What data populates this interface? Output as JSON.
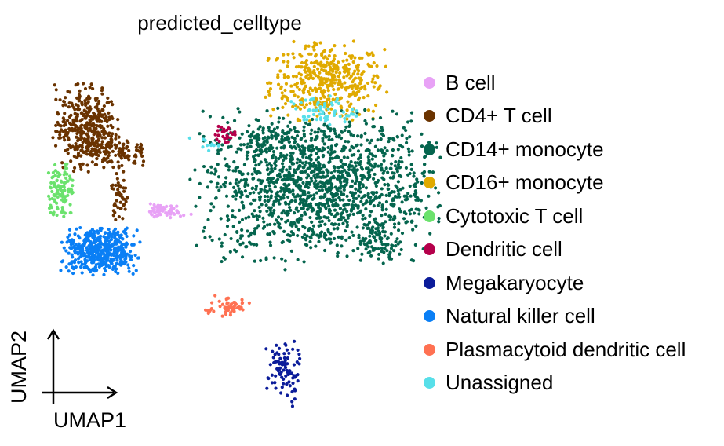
{
  "chart_data": {
    "type": "scatter",
    "title": "predicted_celltype",
    "xlabel": "UMAP1",
    "ylabel": "UMAP2",
    "xlim": [
      0,
      10
    ],
    "ylim": [
      0,
      10
    ],
    "grid": false,
    "legend_placement": "right",
    "categories": [
      {
        "name": "B cell",
        "color": "#E8A2F6"
      },
      {
        "name": "CD4+ T cell",
        "color": "#6A3300"
      },
      {
        "name": "CD14+ monocyte",
        "color": "#05654E"
      },
      {
        "name": "CD16+ monocyte",
        "color": "#E0AA00"
      },
      {
        "name": "Cytotoxic T cell",
        "color": "#6BE26D"
      },
      {
        "name": "Dendritic cell",
        "color": "#B5004B"
      },
      {
        "name": "Megakaryocyte",
        "color": "#0B1C9A"
      },
      {
        "name": "Natural killer cell",
        "color": "#0A7FF5"
      },
      {
        "name": "Plasmacytoid dendritic cell",
        "color": "#FF7152"
      },
      {
        "name": "Unassigned",
        "color": "#58DFE9"
      }
    ],
    "clusters": [
      {
        "category": 3,
        "cx": 7.85,
        "cy": 8.85,
        "sx": 0.75,
        "sy": 0.5,
        "n": 420
      },
      {
        "category": 2,
        "cx": 7.6,
        "cy": 6.05,
        "sx": 1.5,
        "sy": 0.95,
        "n": 1500
      },
      {
        "category": 2,
        "cx": 6.1,
        "cy": 7.3,
        "sx": 0.35,
        "sy": 0.2,
        "n": 60
      },
      {
        "category": 2,
        "cx": 9.25,
        "cy": 4.5,
        "sx": 0.25,
        "sy": 0.3,
        "n": 70
      },
      {
        "category": 9,
        "cx": 7.7,
        "cy": 8.05,
        "sx": 0.45,
        "sy": 0.2,
        "n": 60
      },
      {
        "category": 9,
        "cx": 4.6,
        "cy": 7.15,
        "sx": 0.2,
        "sy": 0.08,
        "n": 10
      },
      {
        "category": 5,
        "cx": 5.2,
        "cy": 7.4,
        "sx": 0.15,
        "sy": 0.12,
        "n": 25
      },
      {
        "category": 1,
        "cx": 1.45,
        "cy": 7.6,
        "sx": 0.4,
        "sy": 0.55,
        "n": 420
      },
      {
        "category": 1,
        "cx": 2.4,
        "cy": 6.95,
        "sx": 0.35,
        "sy": 0.2,
        "n": 80
      },
      {
        "category": 1,
        "cx": 2.35,
        "cy": 5.8,
        "sx": 0.12,
        "sy": 0.35,
        "n": 50
      },
      {
        "category": 4,
        "cx": 0.8,
        "cy": 5.85,
        "sx": 0.17,
        "sy": 0.4,
        "n": 110
      },
      {
        "category": 7,
        "cx": 1.83,
        "cy": 4.25,
        "sx": 0.5,
        "sy": 0.3,
        "n": 480
      },
      {
        "category": 0,
        "cx": 3.6,
        "cy": 5.35,
        "sx": 0.25,
        "sy": 0.1,
        "n": 60
      },
      {
        "category": 8,
        "cx": 5.2,
        "cy": 2.75,
        "sx": 0.3,
        "sy": 0.15,
        "n": 55
      },
      {
        "category": 6,
        "cx": 6.7,
        "cy": 1.0,
        "sx": 0.22,
        "sy": 0.45,
        "n": 90
      }
    ]
  }
}
